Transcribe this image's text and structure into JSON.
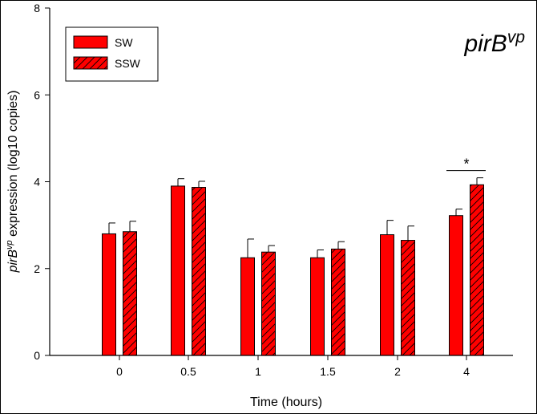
{
  "chart_data": {
    "type": "bar",
    "gene_title": {
      "main": "pirB",
      "superscript": "vp"
    },
    "xlabel": "Time (hours)",
    "ylabel": {
      "italic": "pirB",
      "superscript": "vp",
      "rest": " expression (log10 copies)"
    },
    "categories": [
      "0",
      "0.5",
      "1",
      "1.5",
      "2",
      "4"
    ],
    "ylim": [
      0,
      8
    ],
    "yticks": [
      0,
      2,
      4,
      6,
      8
    ],
    "series": [
      {
        "name": "SW",
        "pattern": "solid",
        "values": [
          2.8,
          3.9,
          2.25,
          2.25,
          2.78,
          3.22
        ],
        "errors": [
          0.25,
          0.17,
          0.43,
          0.18,
          0.33,
          0.15
        ]
      },
      {
        "name": "SSW",
        "pattern": "hatched",
        "values": [
          2.85,
          3.87,
          2.38,
          2.45,
          2.65,
          3.93
        ],
        "errors": [
          0.24,
          0.14,
          0.15,
          0.17,
          0.33,
          0.16
        ]
      }
    ],
    "annotations": [
      {
        "category": "4",
        "text": "*",
        "type": "significance"
      }
    ],
    "legend": {
      "position": "top-left"
    },
    "colors": {
      "bar_fill": "#ff0000",
      "edge": "#000000"
    }
  }
}
